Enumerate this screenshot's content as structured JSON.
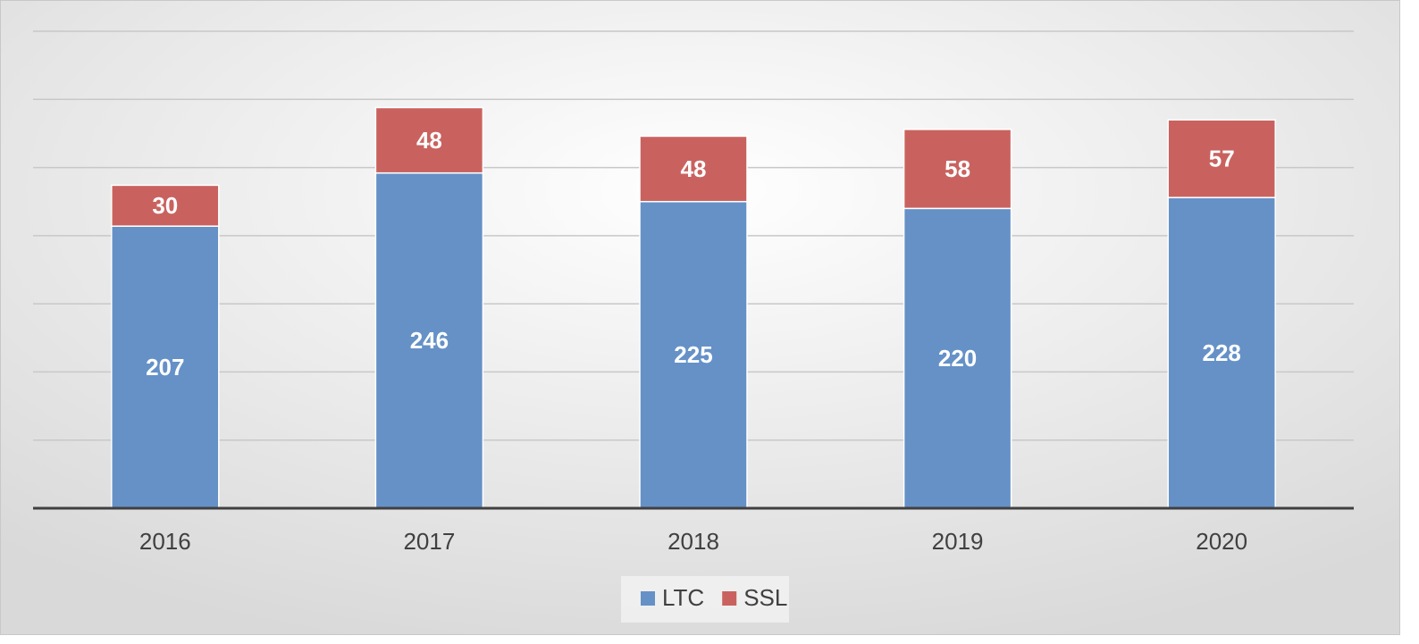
{
  "chart_data": {
    "type": "bar",
    "stacked": true,
    "categories": [
      "2016",
      "2017",
      "2018",
      "2019",
      "2020"
    ],
    "series": [
      {
        "name": "LTC",
        "color": "#6591c7",
        "values": [
          207,
          246,
          225,
          220,
          228
        ]
      },
      {
        "name": "SSL",
        "color": "#c9625f",
        "values": [
          30,
          48,
          48,
          58,
          57
        ]
      }
    ],
    "ylim": [
      0,
      350
    ],
    "yticks": [
      0,
      50,
      100,
      150,
      200,
      250,
      300,
      350
    ],
    "grid": true,
    "legend": "bottom"
  }
}
